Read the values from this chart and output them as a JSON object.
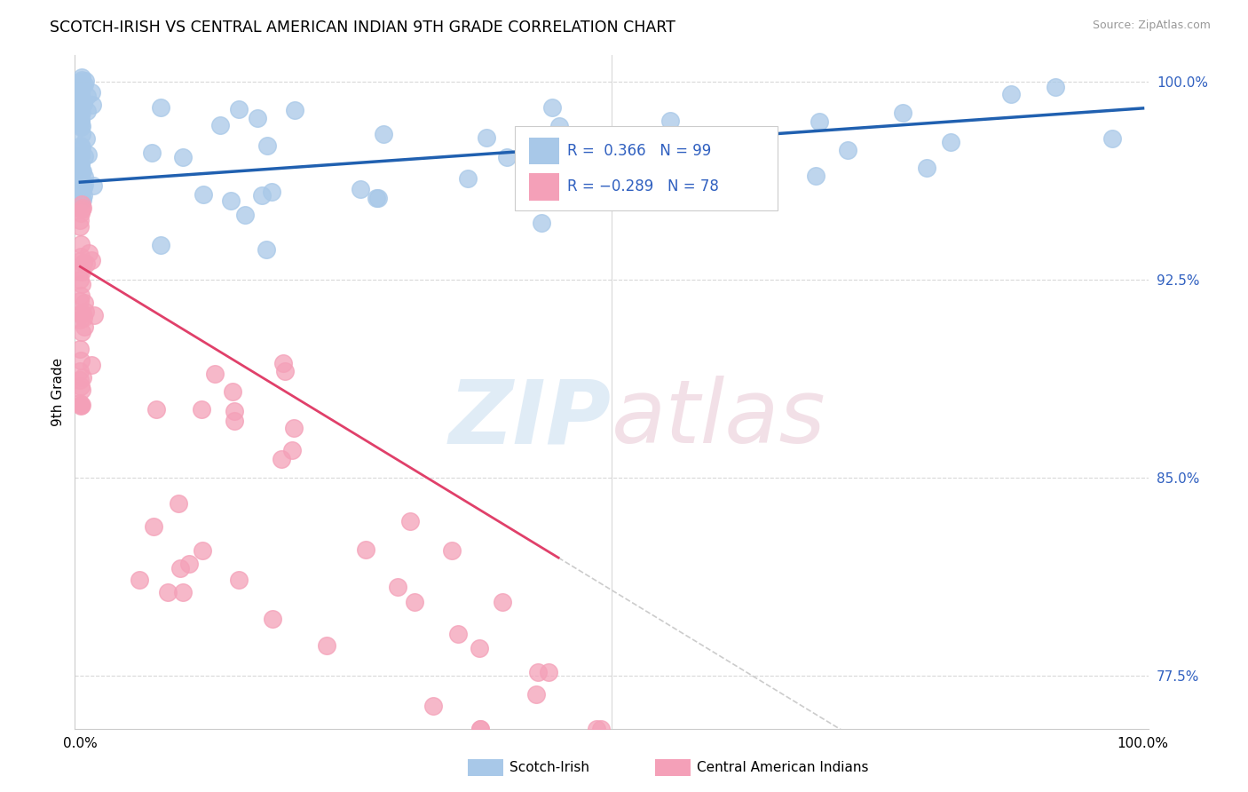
{
  "title": "SCOTCH-IRISH VS CENTRAL AMERICAN INDIAN 9TH GRADE CORRELATION CHART",
  "source": "Source: ZipAtlas.com",
  "ylabel": "9th Grade",
  "y_ticks": [
    0.775,
    0.85,
    0.925,
    1.0
  ],
  "y_tick_labels": [
    "77.5%",
    "85.0%",
    "92.5%",
    "100.0%"
  ],
  "legend_label_blue": "Scotch-Irish",
  "legend_label_pink": "Central American Indians",
  "R_blue": 0.366,
  "N_blue": 99,
  "R_pink": -0.289,
  "N_pink": 78,
  "blue_color": "#a8c8e8",
  "pink_color": "#f4a0b8",
  "line_blue_color": "#2060b0",
  "line_pink_color": "#e0406a",
  "grid_color": "#d8d8d8",
  "xlim": [
    0.0,
    1.0
  ],
  "ylim": [
    0.755,
    1.01
  ]
}
